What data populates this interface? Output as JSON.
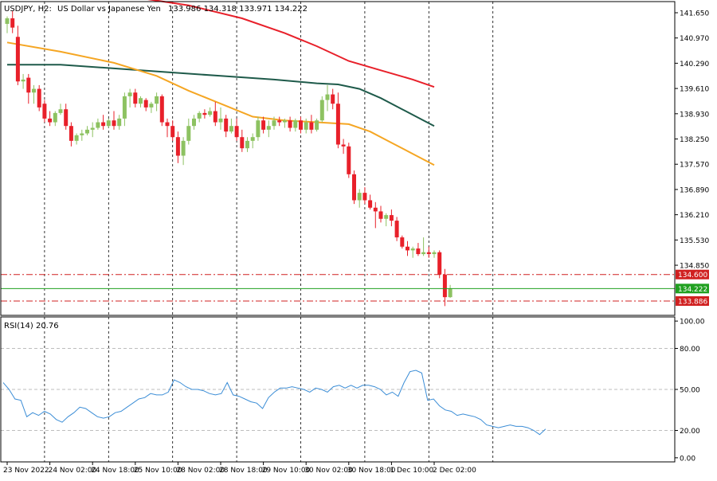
{
  "header": {
    "symbol": "USDJPY, H2:",
    "description": "US Dollar vs Japanese Yen",
    "ohlc": "133.986 134.318 133.971 134.222"
  },
  "rsi": {
    "title": "RSI(14) 20.76",
    "levels": [
      100,
      80,
      50,
      20,
      0
    ],
    "level_labels": [
      "100.00",
      "80.00",
      "50.00",
      "20.00",
      "0.00"
    ]
  },
  "colors": {
    "bull": "#8dc261",
    "bear": "#e8202a",
    "ma_fast": "#f5a623",
    "ma_mid": "#1e5a4a",
    "ma_slow": "#e8202a",
    "rsi_line": "#3b8dd6",
    "price_line": "#20a020",
    "level_line": "#d02020",
    "grid": "#000000"
  },
  "chart_data": [
    {
      "type": "candlestick",
      "title": "USDJPY, H2:  US Dollar vs Japanese Yen",
      "ylim": [
        133.5,
        141.95
      ],
      "y_tick_labels": [
        "141.650",
        "140.970",
        "140.290",
        "139.610",
        "138.930",
        "138.250",
        "137.570",
        "136.890",
        "136.210",
        "135.530",
        "134.850"
      ],
      "y_ticks": [
        141.65,
        140.97,
        140.29,
        139.61,
        138.93,
        138.25,
        137.57,
        136.89,
        136.21,
        135.53,
        134.85
      ],
      "x_tick_labels": [
        "23 Nov 2022",
        "24 Nov 02:00",
        "24 Nov 18:00",
        "25 Nov 10:00",
        "28 Nov 02:00",
        "28 Nov 18:00",
        "29 Nov 10:00",
        "30 Nov 02:00",
        "30 Nov 18:00",
        "1 Dec 10:00",
        "2 Dec 02:00"
      ],
      "x_tick_index": [
        0,
        8,
        16,
        24,
        32,
        40,
        48,
        56,
        64,
        72,
        80
      ],
      "grid_index": [
        7,
        19,
        31,
        43,
        55,
        67,
        79,
        91
      ],
      "horizontal_levels": [
        {
          "value": 134.6,
          "label": "134.600",
          "style": "dashdot"
        },
        {
          "value": 133.886,
          "label": "133.886",
          "style": "dashdot"
        }
      ],
      "current_price": {
        "value": 134.222,
        "label": "134.222"
      },
      "candles": [
        {
          "o": 141.35,
          "h": 141.55,
          "l": 141.1,
          "c": 141.5
        },
        {
          "o": 141.5,
          "h": 141.7,
          "l": 141.1,
          "c": 141.25
        },
        {
          "o": 141.0,
          "h": 141.3,
          "l": 139.7,
          "c": 139.8
        },
        {
          "o": 139.8,
          "h": 140.0,
          "l": 139.6,
          "c": 139.85
        },
        {
          "o": 139.9,
          "h": 140.0,
          "l": 139.2,
          "c": 139.5
        },
        {
          "o": 139.5,
          "h": 139.7,
          "l": 139.2,
          "c": 139.6
        },
        {
          "o": 139.6,
          "h": 139.7,
          "l": 139.0,
          "c": 139.1
        },
        {
          "o": 139.2,
          "h": 139.3,
          "l": 138.7,
          "c": 138.8
        },
        {
          "o": 138.8,
          "h": 139.0,
          "l": 138.6,
          "c": 138.7
        },
        {
          "o": 138.7,
          "h": 139.0,
          "l": 138.6,
          "c": 138.95
        },
        {
          "o": 138.95,
          "h": 139.2,
          "l": 138.9,
          "c": 139.05
        },
        {
          "o": 139.05,
          "h": 139.2,
          "l": 138.5,
          "c": 138.6
        },
        {
          "o": 138.6,
          "h": 138.7,
          "l": 138.05,
          "c": 138.2
        },
        {
          "o": 138.2,
          "h": 138.4,
          "l": 138.1,
          "c": 138.35
        },
        {
          "o": 138.35,
          "h": 138.5,
          "l": 138.2,
          "c": 138.4
        },
        {
          "o": 138.4,
          "h": 138.6,
          "l": 138.35,
          "c": 138.5
        },
        {
          "o": 138.5,
          "h": 138.7,
          "l": 138.3,
          "c": 138.55
        },
        {
          "o": 138.55,
          "h": 138.8,
          "l": 138.5,
          "c": 138.7
        },
        {
          "o": 138.7,
          "h": 138.9,
          "l": 138.5,
          "c": 138.6
        },
        {
          "o": 138.6,
          "h": 138.8,
          "l": 138.55,
          "c": 138.75
        },
        {
          "o": 138.75,
          "h": 139.0,
          "l": 138.5,
          "c": 138.6
        },
        {
          "o": 138.6,
          "h": 138.9,
          "l": 138.5,
          "c": 138.8
        },
        {
          "o": 138.8,
          "h": 139.5,
          "l": 138.6,
          "c": 139.4
        },
        {
          "o": 139.4,
          "h": 139.6,
          "l": 139.1,
          "c": 139.5
        },
        {
          "o": 139.5,
          "h": 139.6,
          "l": 139.1,
          "c": 139.2
        },
        {
          "o": 139.2,
          "h": 139.4,
          "l": 139.1,
          "c": 139.35
        },
        {
          "o": 139.3,
          "h": 139.35,
          "l": 139.0,
          "c": 139.1
        },
        {
          "o": 139.1,
          "h": 139.25,
          "l": 138.95,
          "c": 139.2
        },
        {
          "o": 139.2,
          "h": 139.5,
          "l": 139.0,
          "c": 139.4
        },
        {
          "o": 139.4,
          "h": 139.45,
          "l": 138.6,
          "c": 138.7
        },
        {
          "o": 138.7,
          "h": 138.8,
          "l": 138.3,
          "c": 138.6
        },
        {
          "o": 138.6,
          "h": 138.75,
          "l": 138.2,
          "c": 138.3
        },
        {
          "o": 138.3,
          "h": 138.45,
          "l": 137.6,
          "c": 137.8
        },
        {
          "o": 137.8,
          "h": 138.3,
          "l": 137.55,
          "c": 138.2
        },
        {
          "o": 138.2,
          "h": 138.8,
          "l": 138.1,
          "c": 138.6
        },
        {
          "o": 138.6,
          "h": 138.9,
          "l": 138.5,
          "c": 138.8
        },
        {
          "o": 138.8,
          "h": 139.0,
          "l": 138.7,
          "c": 138.95
        },
        {
          "o": 138.95,
          "h": 139.05,
          "l": 138.8,
          "c": 138.9
        },
        {
          "o": 138.9,
          "h": 139.1,
          "l": 138.85,
          "c": 139.0
        },
        {
          "o": 139.0,
          "h": 139.25,
          "l": 138.6,
          "c": 138.7
        },
        {
          "o": 138.7,
          "h": 139.1,
          "l": 138.5,
          "c": 138.8
        },
        {
          "o": 138.8,
          "h": 138.9,
          "l": 138.3,
          "c": 138.45
        },
        {
          "o": 138.45,
          "h": 138.8,
          "l": 138.4,
          "c": 138.6
        },
        {
          "o": 138.6,
          "h": 138.8,
          "l": 138.2,
          "c": 138.3
        },
        {
          "o": 138.3,
          "h": 138.5,
          "l": 137.9,
          "c": 138.0
        },
        {
          "o": 138.0,
          "h": 138.3,
          "l": 137.9,
          "c": 138.2
        },
        {
          "o": 138.2,
          "h": 138.4,
          "l": 138.0,
          "c": 138.3
        },
        {
          "o": 138.3,
          "h": 138.85,
          "l": 138.2,
          "c": 138.75
        },
        {
          "o": 138.75,
          "h": 138.85,
          "l": 138.4,
          "c": 138.5
        },
        {
          "o": 138.5,
          "h": 138.75,
          "l": 138.3,
          "c": 138.6
        },
        {
          "o": 138.6,
          "h": 138.85,
          "l": 138.5,
          "c": 138.75
        },
        {
          "o": 138.75,
          "h": 138.85,
          "l": 138.6,
          "c": 138.7
        },
        {
          "o": 138.7,
          "h": 138.8,
          "l": 138.55,
          "c": 138.75
        },
        {
          "o": 138.75,
          "h": 138.85,
          "l": 138.45,
          "c": 138.55
        },
        {
          "o": 138.55,
          "h": 138.8,
          "l": 138.45,
          "c": 138.75
        },
        {
          "o": 138.75,
          "h": 138.85,
          "l": 138.4,
          "c": 138.5
        },
        {
          "o": 138.5,
          "h": 138.8,
          "l": 138.4,
          "c": 138.7
        },
        {
          "o": 138.7,
          "h": 138.9,
          "l": 138.4,
          "c": 138.5
        },
        {
          "o": 138.5,
          "h": 138.8,
          "l": 138.45,
          "c": 138.75
        },
        {
          "o": 138.75,
          "h": 139.4,
          "l": 138.7,
          "c": 139.3
        },
        {
          "o": 139.3,
          "h": 139.7,
          "l": 139.0,
          "c": 139.45
        },
        {
          "o": 139.45,
          "h": 139.6,
          "l": 139.05,
          "c": 139.2
        },
        {
          "o": 139.2,
          "h": 139.5,
          "l": 138.0,
          "c": 138.1
        },
        {
          "o": 138.1,
          "h": 138.25,
          "l": 137.85,
          "c": 138.05
        },
        {
          "o": 138.05,
          "h": 138.15,
          "l": 137.2,
          "c": 137.3
        },
        {
          "o": 137.3,
          "h": 137.4,
          "l": 136.5,
          "c": 136.6
        },
        {
          "o": 136.6,
          "h": 136.9,
          "l": 136.4,
          "c": 136.8
        },
        {
          "o": 136.8,
          "h": 136.95,
          "l": 136.5,
          "c": 136.6
        },
        {
          "o": 136.6,
          "h": 136.75,
          "l": 136.35,
          "c": 136.4
        },
        {
          "o": 136.4,
          "h": 136.55,
          "l": 135.85,
          "c": 136.3
        },
        {
          "o": 136.3,
          "h": 136.45,
          "l": 136.0,
          "c": 136.1
        },
        {
          "o": 136.1,
          "h": 136.25,
          "l": 135.9,
          "c": 136.2
        },
        {
          "o": 136.2,
          "h": 136.35,
          "l": 135.9,
          "c": 136.05
        },
        {
          "o": 136.05,
          "h": 136.15,
          "l": 135.5,
          "c": 135.6
        },
        {
          "o": 135.6,
          "h": 135.65,
          "l": 135.3,
          "c": 135.35
        },
        {
          "o": 135.35,
          "h": 135.5,
          "l": 135.1,
          "c": 135.25
        },
        {
          "o": 135.25,
          "h": 135.35,
          "l": 135.05,
          "c": 135.3
        },
        {
          "o": 135.3,
          "h": 135.45,
          "l": 135.1,
          "c": 135.15
        },
        {
          "o": 135.15,
          "h": 135.6,
          "l": 135.1,
          "c": 135.2
        },
        {
          "o": 135.2,
          "h": 135.35,
          "l": 135.05,
          "c": 135.15
        },
        {
          "o": 135.15,
          "h": 135.25,
          "l": 135.05,
          "c": 135.2
        },
        {
          "o": 135.2,
          "h": 135.25,
          "l": 134.5,
          "c": 134.6
        },
        {
          "o": 134.6,
          "h": 134.75,
          "l": 133.75,
          "c": 133.99
        },
        {
          "o": 133.99,
          "h": 134.32,
          "l": 133.97,
          "c": 134.22
        }
      ],
      "ma_fast": [
        [
          0,
          140.85
        ],
        [
          10,
          140.6
        ],
        [
          20,
          140.3
        ],
        [
          28,
          139.95
        ],
        [
          34,
          139.55
        ],
        [
          40,
          139.2
        ],
        [
          46,
          138.85
        ],
        [
          52,
          138.75
        ],
        [
          58,
          138.7
        ],
        [
          64,
          138.65
        ],
        [
          68,
          138.45
        ],
        [
          72,
          138.15
        ],
        [
          76,
          137.85
        ],
        [
          80,
          137.55
        ]
      ],
      "ma_mid": [
        [
          0,
          140.25
        ],
        [
          10,
          140.25
        ],
        [
          20,
          140.15
        ],
        [
          30,
          140.05
        ],
        [
          40,
          139.95
        ],
        [
          50,
          139.85
        ],
        [
          58,
          139.75
        ],
        [
          62,
          139.72
        ],
        [
          66,
          139.6
        ],
        [
          70,
          139.35
        ],
        [
          74,
          139.05
        ],
        [
          78,
          138.75
        ],
        [
          80,
          138.6
        ]
      ],
      "ma_slow": [
        [
          0,
          142.2
        ],
        [
          20,
          142.15
        ],
        [
          34,
          141.85
        ],
        [
          44,
          141.5
        ],
        [
          52,
          141.1
        ],
        [
          58,
          140.75
        ],
        [
          64,
          140.35
        ],
        [
          70,
          140.1
        ],
        [
          76,
          139.85
        ],
        [
          80,
          139.65
        ]
      ]
    },
    {
      "type": "line",
      "title": "RSI(14) 20.76",
      "ylim": [
        -3,
        103
      ],
      "values": [
        55,
        50,
        43,
        42,
        30,
        33,
        31,
        34,
        32,
        28,
        26,
        30,
        33,
        37,
        36,
        33,
        30,
        29,
        30,
        33,
        34,
        37,
        40,
        43,
        44,
        47,
        46,
        46,
        48,
        57,
        55,
        52,
        50,
        50,
        49,
        47,
        46,
        47,
        55,
        46,
        45,
        43,
        41,
        40,
        36,
        44,
        48,
        51,
        51,
        52,
        51,
        50,
        48,
        51,
        50,
        48,
        52,
        53,
        51,
        53,
        51,
        53,
        53,
        52,
        50,
        46,
        48,
        45,
        55,
        63,
        64,
        62,
        42,
        43,
        38,
        35,
        34,
        31,
        32,
        31,
        30,
        28,
        24,
        23,
        22,
        23,
        24,
        23,
        23,
        22,
        20,
        17,
        21
      ]
    }
  ]
}
